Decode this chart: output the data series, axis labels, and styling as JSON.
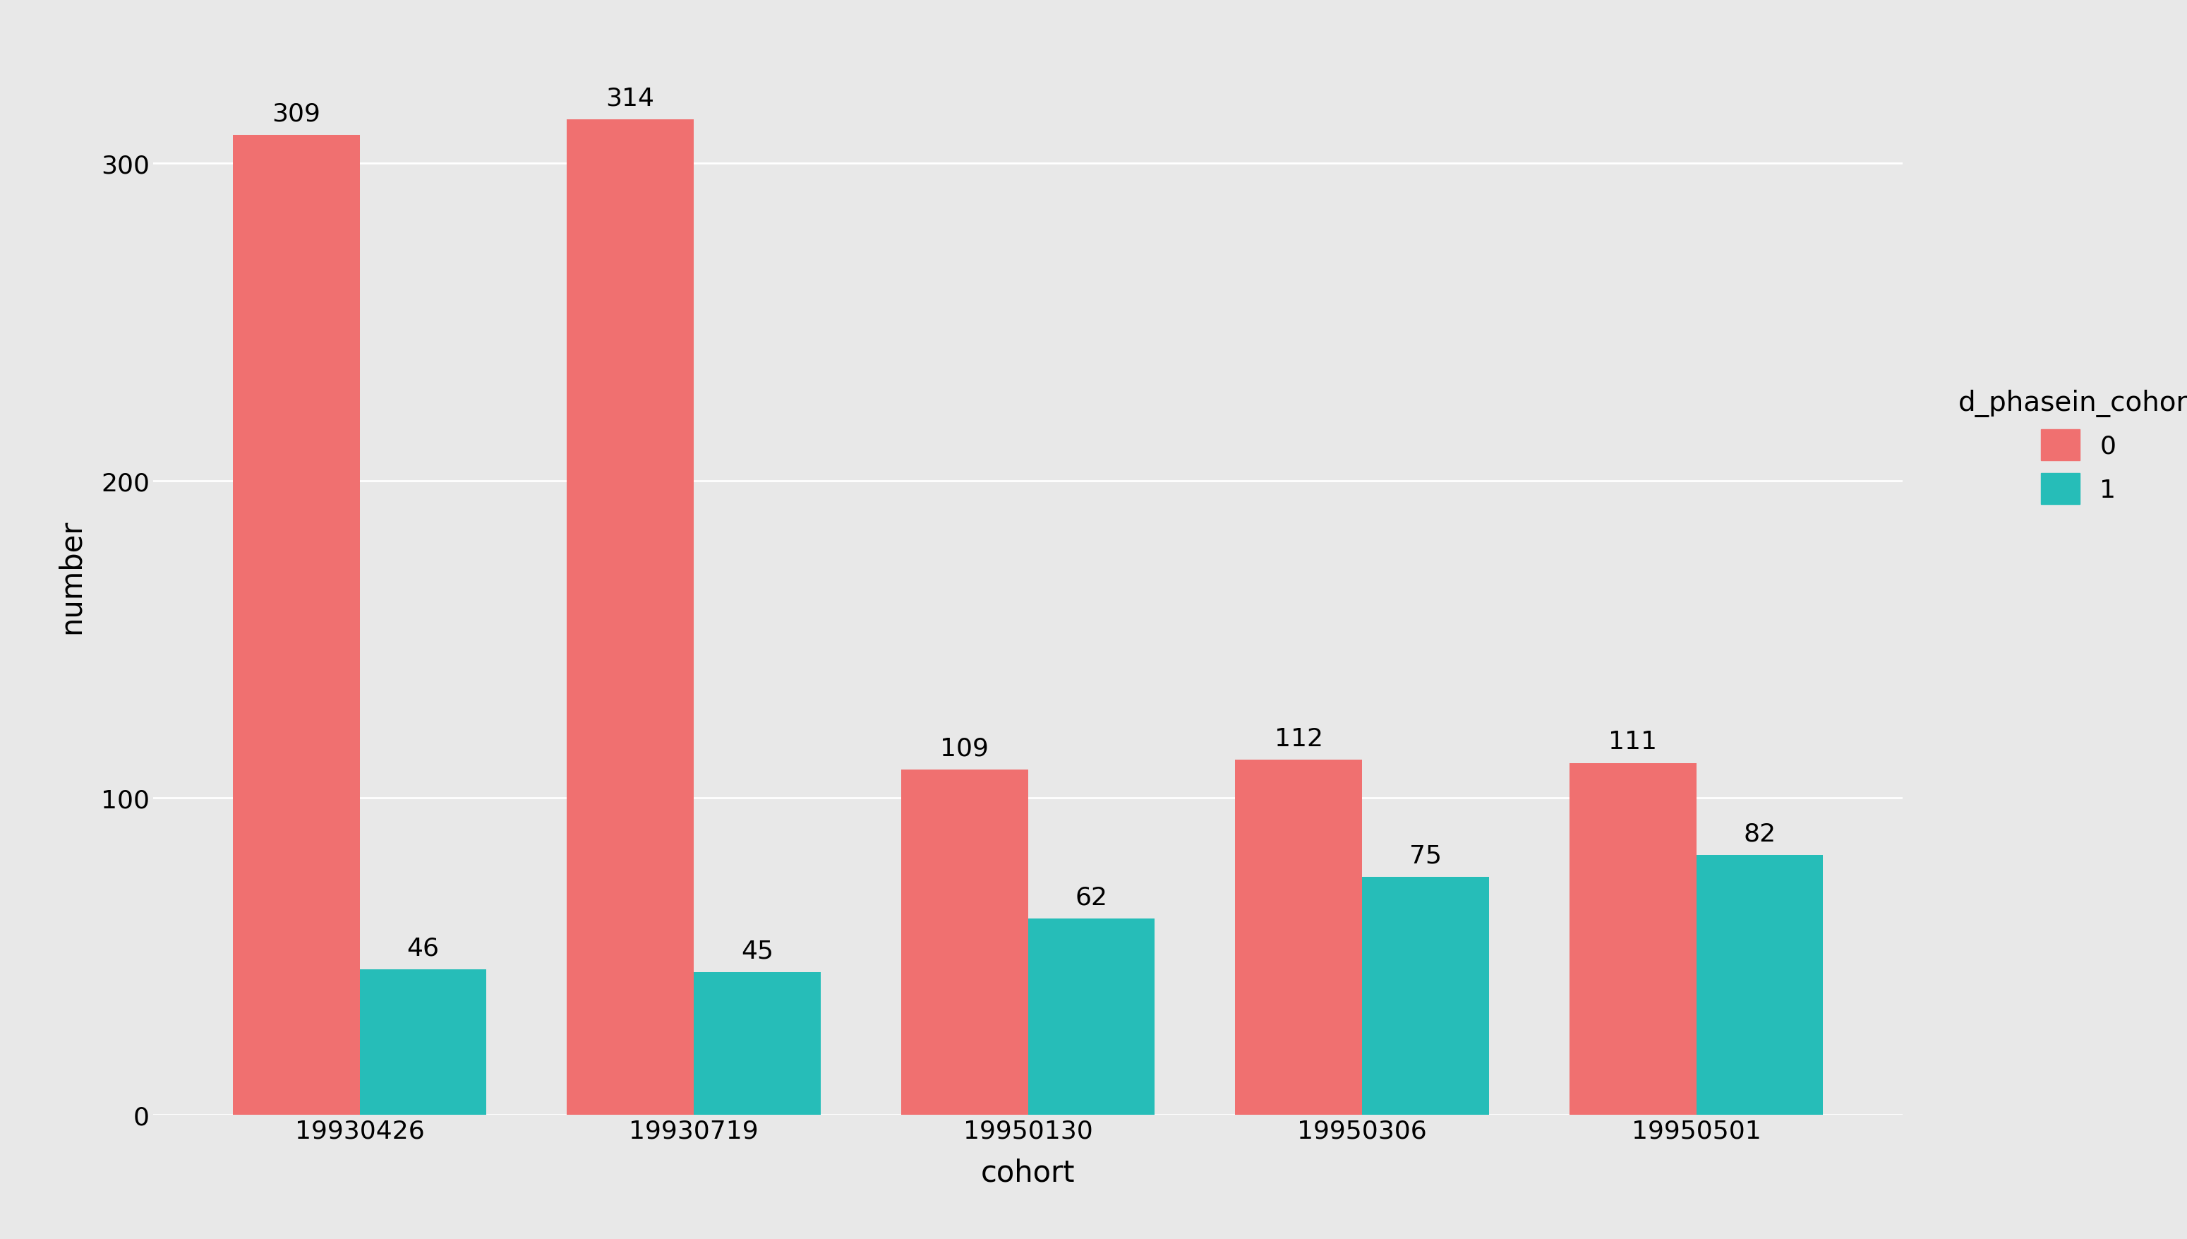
{
  "cohorts": [
    "19930426",
    "19930719",
    "19950130",
    "19950306",
    "19950501"
  ],
  "values_0": [
    309,
    314,
    109,
    112,
    111
  ],
  "values_1": [
    46,
    45,
    62,
    75,
    82
  ],
  "color_0": "#F07070",
  "color_1": "#26BDB8",
  "xlabel": "cohort",
  "ylabel": "number",
  "legend_title": "d_phasein_cohort",
  "legend_labels": [
    "0",
    "1"
  ],
  "background_color": "#E8E8E8",
  "panel_background": "#E8E8E8",
  "title": "",
  "bar_width": 0.38,
  "tick_fontsize": 26,
  "axis_label_fontsize": 30,
  "legend_fontsize": 26,
  "legend_title_fontsize": 28,
  "annotation_fontsize": 26,
  "ylim": [
    0,
    340
  ],
  "yticks": [
    0,
    100,
    200,
    300
  ]
}
